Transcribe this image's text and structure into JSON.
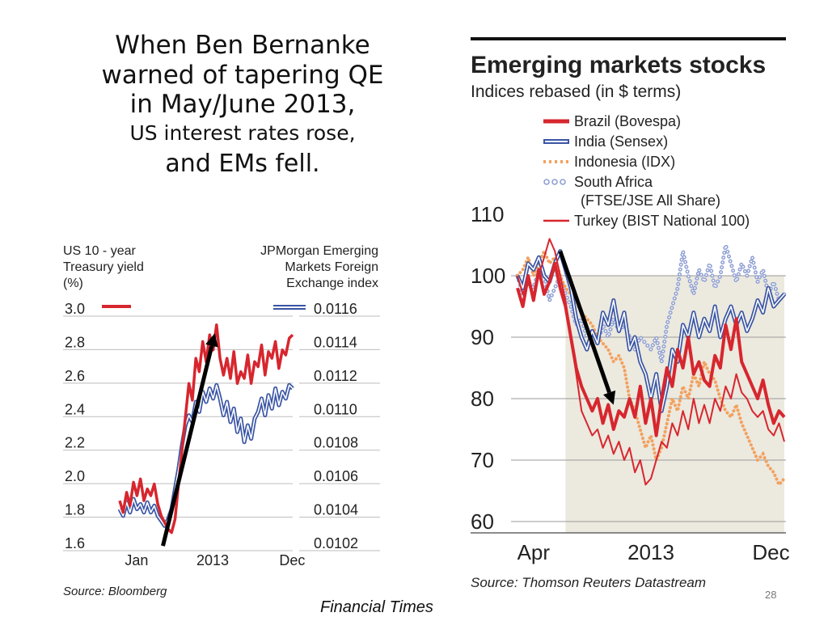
{
  "slide": {
    "title_lines": [
      "When Ben Bernanke",
      "warned of tapering QE",
      "in May/June 2013,"
    ],
    "subtitle": "US interest rates rose,",
    "conclusion": "and EMs fell.",
    "credit": "Financial  Times",
    "page_number": "28"
  },
  "chart_data": [
    {
      "type": "line",
      "left_axis_title": [
        "US 10 - year",
        "Treasury yield",
        "(%)"
      ],
      "right_axis_title": [
        "JPMorgan Emerging",
        "Markets Foreign",
        "Exchange index"
      ],
      "y_left_ticks": [
        "3.0",
        "2.8",
        "2.6",
        "2.4",
        "2.2",
        "2.0",
        "1.8",
        "1.6"
      ],
      "y_right_ticks": [
        "0.0116",
        "0.0114",
        "0.0112",
        "0.0110",
        "0.0108",
        "0.0106",
        "0.0104",
        "0.0102"
      ],
      "x_ticks": [
        {
          "label": "Jan",
          "pos": 0.06
        },
        {
          "label": "2013",
          "pos": 0.5
        },
        {
          "label": "Dec",
          "pos": 0.96
        }
      ],
      "ylim_left": [
        1.6,
        3.0
      ],
      "ylim_right": [
        0.0102,
        0.0116
      ],
      "series": [
        {
          "color": "#d7262e",
          "axis": "left",
          "x": [
            0,
            0.02,
            0.04,
            0.06,
            0.08,
            0.1,
            0.12,
            0.14,
            0.16,
            0.18,
            0.2,
            0.22,
            0.24,
            0.26,
            0.28,
            0.3,
            0.32,
            0.34,
            0.36,
            0.38,
            0.4,
            0.42,
            0.44,
            0.46,
            0.48,
            0.5,
            0.52,
            0.54,
            0.56,
            0.58,
            0.6,
            0.62,
            0.64,
            0.66,
            0.68,
            0.7,
            0.72,
            0.74,
            0.76,
            0.78,
            0.8,
            0.82,
            0.84,
            0.86,
            0.88,
            0.9,
            0.92,
            0.94,
            0.96,
            0.98,
            1.0
          ],
          "values": [
            1.85,
            1.78,
            1.9,
            1.82,
            1.96,
            1.88,
            1.98,
            1.85,
            1.92,
            1.88,
            1.95,
            1.83,
            1.76,
            1.72,
            1.68,
            1.66,
            1.74,
            1.95,
            2.15,
            2.35,
            2.55,
            2.45,
            2.7,
            2.62,
            2.8,
            2.68,
            2.84,
            2.75,
            2.9,
            2.7,
            2.6,
            2.7,
            2.58,
            2.74,
            2.55,
            2.62,
            2.58,
            2.72,
            2.55,
            2.68,
            2.65,
            2.78,
            2.6,
            2.74,
            2.7,
            2.8,
            2.64,
            2.75,
            2.72,
            2.82,
            2.84
          ]
        },
        {
          "color": "#3a55a4",
          "axis": "right",
          "x": [
            0,
            0.02,
            0.04,
            0.06,
            0.08,
            0.1,
            0.12,
            0.14,
            0.16,
            0.18,
            0.2,
            0.22,
            0.24,
            0.26,
            0.28,
            0.3,
            0.32,
            0.34,
            0.36,
            0.38,
            0.4,
            0.42,
            0.44,
            0.46,
            0.48,
            0.5,
            0.52,
            0.54,
            0.56,
            0.58,
            0.6,
            0.62,
            0.64,
            0.66,
            0.68,
            0.7,
            0.72,
            0.74,
            0.76,
            0.78,
            0.8,
            0.82,
            0.84,
            0.86,
            0.88,
            0.9,
            0.92,
            0.94,
            0.96,
            0.98,
            1.0
          ],
          "values": [
            0.0104,
            0.01036,
            0.01044,
            0.01038,
            0.01046,
            0.0104,
            0.01043,
            0.01038,
            0.01044,
            0.01038,
            0.01042,
            0.01036,
            0.01033,
            0.0103,
            0.01034,
            0.0104,
            0.01052,
            0.01064,
            0.01078,
            0.0109,
            0.01096,
            0.01092,
            0.01104,
            0.01098,
            0.0111,
            0.01104,
            0.01112,
            0.01106,
            0.01114,
            0.01106,
            0.01096,
            0.01104,
            0.01092,
            0.011,
            0.01086,
            0.01094,
            0.0108,
            0.0109,
            0.01082,
            0.01094,
            0.01098,
            0.01106,
            0.01096,
            0.01108,
            0.011,
            0.01112,
            0.01102,
            0.0111,
            0.01106,
            0.01114,
            0.01112
          ]
        }
      ],
      "arrow": {
        "from": [
          0.25,
          1.58
        ],
        "to": [
          0.55,
          2.85
        ]
      },
      "source": "Source: Bloomberg"
    },
    {
      "type": "line",
      "title": "Emerging markets stocks",
      "subtitle": "Indices rebased  (in $ terms)",
      "legend": [
        {
          "name": "Brazil (Bovespa)",
          "color": "#d7262e",
          "style": "thick"
        },
        {
          "name": "India (Sensex)",
          "color": "#3a55a4",
          "style": "double"
        },
        {
          "name": "Indonesia (IDX)",
          "color": "#f3a15f",
          "style": "dots"
        },
        {
          "name": "South Africa",
          "name2": "(FTSE/JSE All Share)",
          "color": "#8fa0d4",
          "style": "hollow-dots"
        },
        {
          "name": "Turkey (BIST National 100)",
          "color": "#d7262e",
          "style": "thin"
        }
      ],
      "y_ticks": [
        110,
        100,
        90,
        80,
        70,
        60
      ],
      "ylim": [
        60,
        110
      ],
      "x_ticks": [
        {
          "label": "Apr",
          "pos": 0.06
        },
        {
          "label": "2013",
          "pos": 0.5
        },
        {
          "label": "Dec",
          "pos": 0.95
        }
      ],
      "shade": {
        "from": 0.18,
        "to": 1.0
      },
      "series": [
        {
          "name": "Brazil (Bovespa)",
          "color": "#d7262e",
          "style": "thick",
          "x": [
            0,
            0.02,
            0.04,
            0.06,
            0.08,
            0.1,
            0.12,
            0.14,
            0.16,
            0.18,
            0.2,
            0.22,
            0.24,
            0.26,
            0.28,
            0.3,
            0.32,
            0.34,
            0.36,
            0.38,
            0.4,
            0.42,
            0.44,
            0.46,
            0.48,
            0.5,
            0.52,
            0.54,
            0.56,
            0.58,
            0.6,
            0.62,
            0.64,
            0.66,
            0.68,
            0.7,
            0.72,
            0.74,
            0.76,
            0.78,
            0.8,
            0.82,
            0.84,
            0.86,
            0.88,
            0.9,
            0.92,
            0.94,
            0.96,
            0.98,
            1.0
          ],
          "values": [
            98,
            95,
            100,
            96,
            101,
            97,
            99,
            102,
            98,
            95,
            90,
            85,
            82,
            80,
            78,
            80,
            76,
            79,
            75,
            78,
            77,
            80,
            77,
            82,
            76,
            80,
            74,
            80,
            85,
            82,
            88,
            85,
            90,
            84,
            86,
            83,
            82,
            87,
            85,
            92,
            88,
            93,
            86,
            84,
            82,
            80,
            83,
            79,
            76,
            78,
            77
          ]
        },
        {
          "name": "India (Sensex)",
          "color": "#3a55a4",
          "style": "double",
          "x": [
            0,
            0.02,
            0.04,
            0.06,
            0.08,
            0.1,
            0.12,
            0.14,
            0.16,
            0.18,
            0.2,
            0.22,
            0.24,
            0.26,
            0.28,
            0.3,
            0.32,
            0.34,
            0.36,
            0.38,
            0.4,
            0.42,
            0.44,
            0.46,
            0.48,
            0.5,
            0.52,
            0.54,
            0.56,
            0.58,
            0.6,
            0.62,
            0.64,
            0.66,
            0.68,
            0.7,
            0.72,
            0.74,
            0.76,
            0.78,
            0.8,
            0.82,
            0.84,
            0.86,
            0.88,
            0.9,
            0.92,
            0.94,
            0.96,
            0.98,
            1.0
          ],
          "values": [
            100,
            98,
            102,
            101,
            103,
            100,
            99,
            102,
            104,
            101,
            98,
            93,
            90,
            88,
            91,
            89,
            94,
            92,
            96,
            91,
            94,
            88,
            90,
            86,
            84,
            80,
            84,
            78,
            82,
            88,
            86,
            92,
            90,
            94,
            90,
            93,
            91,
            95,
            90,
            93,
            95,
            92,
            94,
            91,
            93,
            96,
            94,
            98,
            95,
            96,
            97
          ]
        },
        {
          "name": "Indonesia (IDX)",
          "color": "#f3a15f",
          "style": "dots",
          "x": [
            0,
            0.02,
            0.04,
            0.06,
            0.08,
            0.1,
            0.12,
            0.14,
            0.16,
            0.18,
            0.2,
            0.22,
            0.24,
            0.26,
            0.28,
            0.3,
            0.32,
            0.34,
            0.36,
            0.38,
            0.4,
            0.42,
            0.44,
            0.46,
            0.48,
            0.5,
            0.52,
            0.54,
            0.56,
            0.58,
            0.6,
            0.62,
            0.64,
            0.66,
            0.68,
            0.7,
            0.72,
            0.74,
            0.76,
            0.78,
            0.8,
            0.82,
            0.84,
            0.86,
            0.88,
            0.9,
            0.92,
            0.94,
            0.96,
            0.98,
            1.0
          ],
          "values": [
            100,
            101,
            103,
            100,
            102,
            104,
            102,
            103,
            100,
            98,
            97,
            96,
            94,
            93,
            92,
            90,
            89,
            88,
            86,
            87,
            85,
            80,
            78,
            75,
            72,
            74,
            70,
            72,
            76,
            80,
            78,
            82,
            80,
            84,
            82,
            86,
            84,
            83,
            80,
            78,
            77,
            79,
            76,
            74,
            72,
            70,
            71,
            69,
            68,
            66,
            67
          ]
        },
        {
          "name": "South Africa (FTSE/JSE All Share)",
          "color": "#8fa0d4",
          "style": "hollow-dots",
          "x": [
            0,
            0.02,
            0.04,
            0.06,
            0.08,
            0.1,
            0.12,
            0.14,
            0.16,
            0.18,
            0.2,
            0.22,
            0.24,
            0.26,
            0.28,
            0.3,
            0.32,
            0.34,
            0.36,
            0.38,
            0.4,
            0.42,
            0.44,
            0.46,
            0.48,
            0.5,
            0.52,
            0.54,
            0.56,
            0.58,
            0.6,
            0.62,
            0.64,
            0.66,
            0.68,
            0.7,
            0.72,
            0.74,
            0.76,
            0.78,
            0.8,
            0.82,
            0.84,
            0.86,
            0.88,
            0.9,
            0.92,
            0.94,
            0.96,
            0.98,
            1.0
          ],
          "values": [
            100,
            97,
            99,
            98,
            101,
            100,
            96,
            98,
            100,
            97,
            95,
            92,
            93,
            90,
            91,
            89,
            92,
            90,
            93,
            91,
            92,
            90,
            88,
            90,
            89,
            88,
            90,
            86,
            92,
            95,
            98,
            104,
            100,
            97,
            101,
            99,
            102,
            98,
            100,
            105,
            102,
            99,
            102,
            100,
            103,
            99,
            101,
            97,
            99,
            96,
            97
          ]
        },
        {
          "name": "Turkey (BIST National 100)",
          "color": "#d7262e",
          "style": "thin",
          "x": [
            0,
            0.02,
            0.04,
            0.06,
            0.08,
            0.1,
            0.12,
            0.14,
            0.16,
            0.18,
            0.2,
            0.22,
            0.24,
            0.26,
            0.28,
            0.3,
            0.32,
            0.34,
            0.36,
            0.38,
            0.4,
            0.42,
            0.44,
            0.46,
            0.48,
            0.5,
            0.52,
            0.54,
            0.56,
            0.58,
            0.6,
            0.62,
            0.64,
            0.66,
            0.68,
            0.7,
            0.72,
            0.74,
            0.76,
            0.78,
            0.8,
            0.82,
            0.84,
            0.86,
            0.88,
            0.9,
            0.92,
            0.94,
            0.96,
            0.98,
            1.0
          ],
          "values": [
            100,
            97,
            99,
            96,
            100,
            103,
            106,
            104,
            100,
            96,
            90,
            84,
            78,
            76,
            74,
            75,
            72,
            74,
            71,
            73,
            70,
            72,
            68,
            70,
            66,
            67,
            70,
            73,
            72,
            76,
            74,
            78,
            75,
            80,
            76,
            79,
            76,
            80,
            78,
            82,
            80,
            84,
            81,
            80,
            78,
            77,
            78,
            75,
            74,
            76,
            73
          ]
        }
      ],
      "arrow": {
        "from": [
          0.16,
          104
        ],
        "to": [
          0.36,
          79
        ]
      },
      "source": "Source: Thomson Reuters Datastream"
    }
  ]
}
